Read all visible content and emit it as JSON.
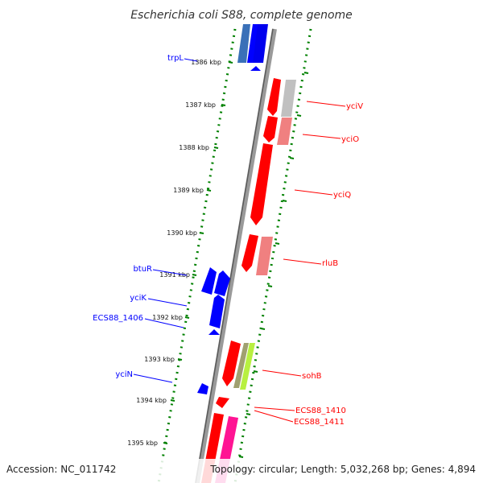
{
  "title": "Escherichia coli S88, complete genome",
  "footer": {
    "accession": "Accession: NC_011742",
    "topology": "Topology: circular; Length: 5,032,268 bp; Genes: 4,894"
  },
  "colors": {
    "forward_gene": "#0000ff",
    "reverse_gene": "#ff0000",
    "backbone": "#808080",
    "tick_track": "#008000"
  },
  "ticks": [
    "1386 kbp",
    "1387 kbp",
    "1388 kbp",
    "1389 kbp",
    "1390 kbp",
    "1391 kbp",
    "1392 kbp",
    "1393 kbp",
    "1394 kbp",
    "1395 kbp"
  ],
  "gene_labels": {
    "left": [
      "trpL",
      "btuR",
      "yciK",
      "ECS88_1406",
      "yciN"
    ],
    "right": [
      "yciV",
      "yciO",
      "yciQ",
      "rluB",
      "sohB",
      "ECS88_1410",
      "ECS88_1411"
    ]
  }
}
